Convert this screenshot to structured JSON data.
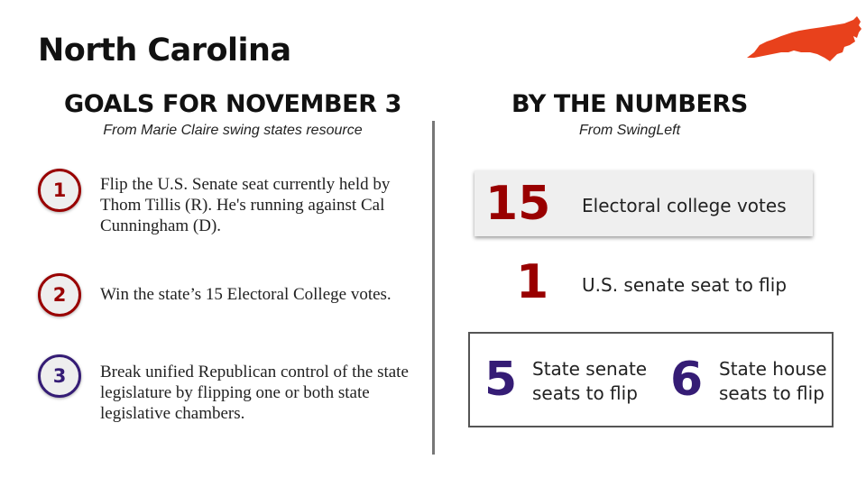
{
  "title": "North Carolina",
  "colors": {
    "accent_red": "#990000",
    "accent_purple": "#351c75",
    "map_orange": "#e8411c"
  },
  "goals": {
    "heading": "GOALS FOR NOVEMBER 3",
    "source": "From Marie Claire swing states resource",
    "items": [
      {
        "number": "1",
        "text": "Flip the U.S. Senate seat currently held by Thom Tillis (R). He's running against Cal Cunningham (D)."
      },
      {
        "number": "2",
        "text": "Win the state’s 15 Electoral College votes."
      },
      {
        "number": "3",
        "text": "Break unified Republican control of the state legislature by flipping one or both state legislative chambers."
      }
    ]
  },
  "numbers": {
    "heading": "BY THE NUMBERS",
    "source": "From SwingLeft",
    "electoral": {
      "value": "15",
      "label": "Electoral college votes"
    },
    "senate": {
      "value": "1",
      "label": "U.S. senate seat to flip"
    },
    "state_senate": {
      "value": "5",
      "label_line1": "State senate",
      "label_line2": "seats to flip"
    },
    "state_house": {
      "value": "6",
      "label_line1": "State house",
      "label_line2": "seats to flip"
    }
  }
}
